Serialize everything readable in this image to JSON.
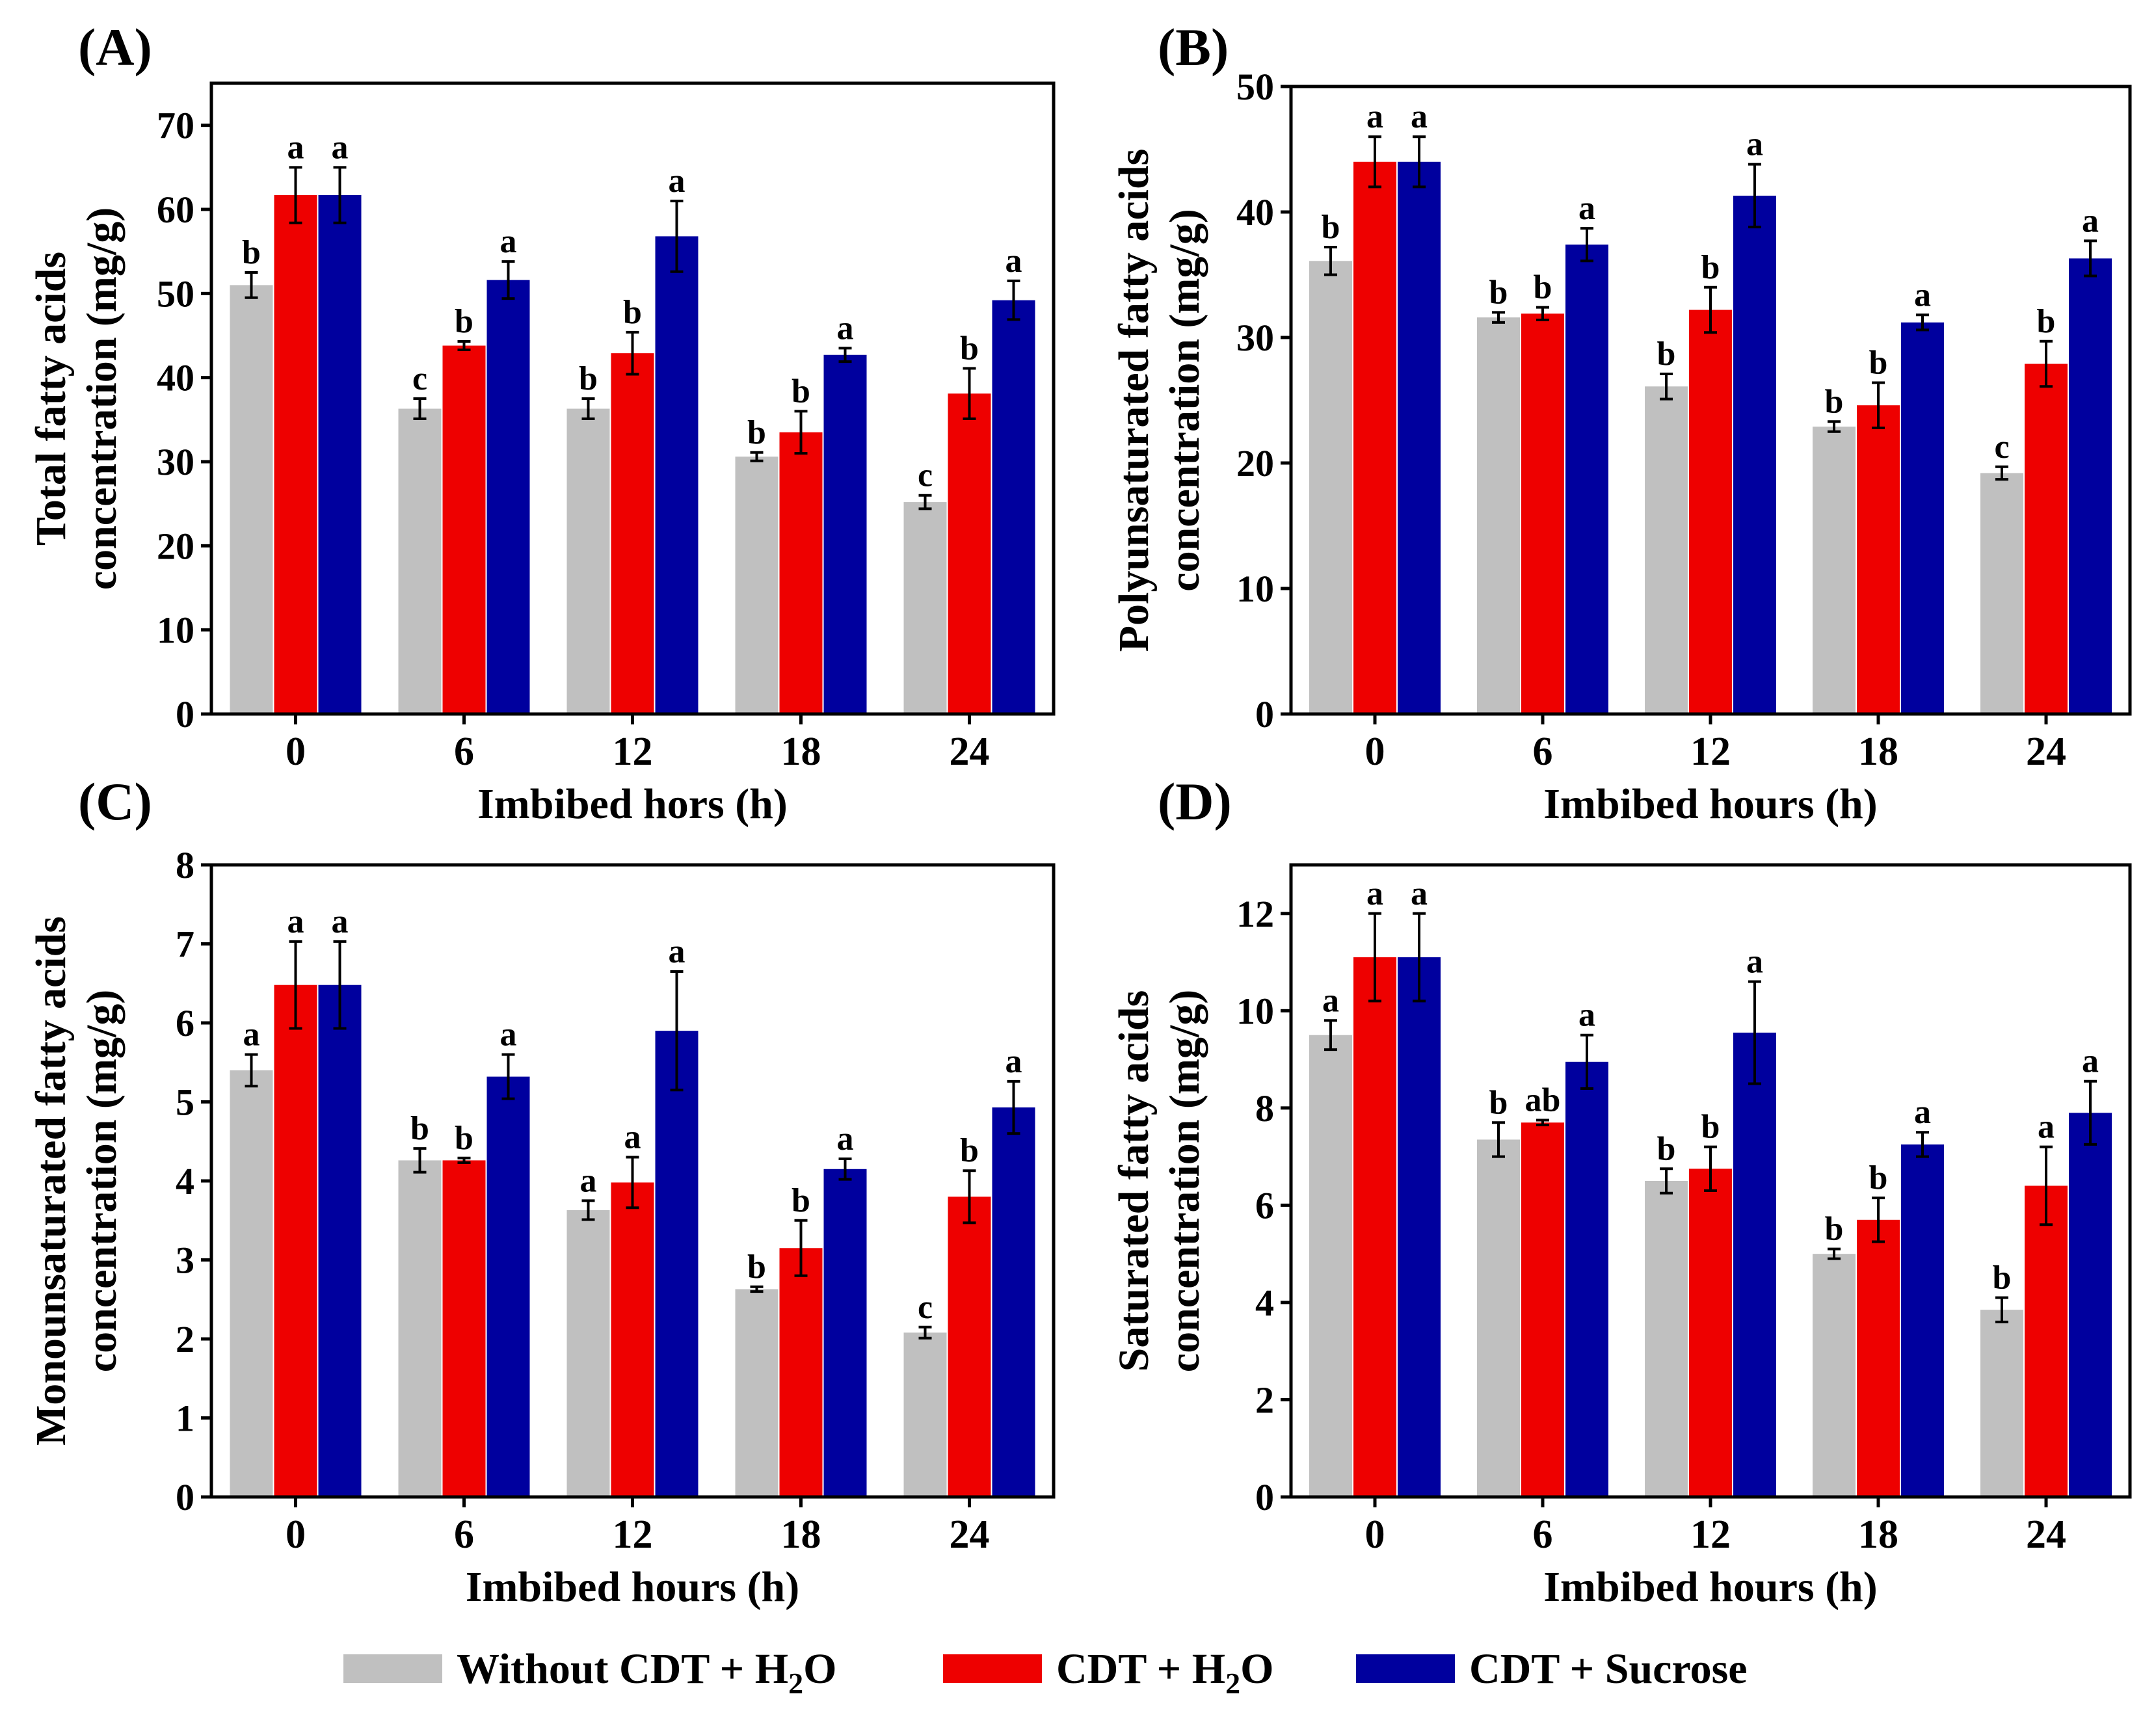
{
  "figure": {
    "legend": [
      {
        "label": "Without CDT + H",
        "sub": "2",
        "tail": "O",
        "color": "#c0c0c0"
      },
      {
        "label": "CDT + H",
        "sub": "2",
        "tail": "O",
        "color": "#ee0000"
      },
      {
        "label": "CDT + Sucrose",
        "sub": "",
        "tail": "",
        "color": "#00009e"
      }
    ]
  },
  "chart_data": [
    {
      "type": "bar",
      "panel_label": "(A)",
      "ylabel": [
        "Total fatty acids",
        "concentration (mg/g)"
      ],
      "xlabel": "Imbibed hors (h)",
      "categories": [
        "0",
        "6",
        "12",
        "18",
        "24"
      ],
      "ylim": [
        0,
        75
      ],
      "yticks": [
        0,
        10,
        20,
        30,
        40,
        50,
        60,
        70
      ],
      "series": [
        {
          "name": "Without CDT + H2O",
          "values": [
            51.0,
            36.3,
            36.3,
            30.6,
            25.2
          ],
          "errors": [
            1.5,
            1.2,
            1.2,
            0.5,
            0.8
          ],
          "letters": [
            "b",
            "c",
            "b",
            "b",
            "c"
          ]
        },
        {
          "name": "CDT + H2O",
          "values": [
            61.7,
            43.8,
            42.9,
            33.5,
            38.1
          ],
          "errors": [
            3.3,
            0.5,
            2.5,
            2.5,
            3.0
          ],
          "letters": [
            "a",
            "b",
            "b",
            "b",
            "b"
          ]
        },
        {
          "name": "CDT + Sucrose",
          "values": [
            61.7,
            51.6,
            56.8,
            42.7,
            49.2
          ],
          "errors": [
            3.3,
            2.2,
            4.2,
            0.8,
            2.3
          ],
          "letters": [
            "a",
            "a",
            "a",
            "a",
            "a"
          ]
        }
      ]
    },
    {
      "type": "bar",
      "panel_label": "(B)",
      "ylabel": [
        "Polyunsaturated fatty acids",
        "concentration (mg/g)"
      ],
      "xlabel": "Imbibed hours (h)",
      "categories": [
        "0",
        "6",
        "12",
        "18",
        "24"
      ],
      "ylim": [
        0,
        50
      ],
      "yticks": [
        0,
        10,
        20,
        30,
        40,
        50
      ],
      "series": [
        {
          "name": "Without CDT + H2O",
          "values": [
            36.1,
            31.6,
            26.1,
            22.9,
            19.2
          ],
          "errors": [
            1.1,
            0.4,
            1.0,
            0.4,
            0.5
          ],
          "letters": [
            "b",
            "b",
            "b",
            "b",
            "c"
          ]
        },
        {
          "name": "CDT + H2O",
          "values": [
            44.0,
            31.9,
            32.2,
            24.6,
            27.9
          ],
          "errors": [
            2.0,
            0.5,
            1.8,
            1.8,
            1.8
          ],
          "letters": [
            "a",
            "b",
            "b",
            "b",
            "b"
          ]
        },
        {
          "name": "CDT + Sucrose",
          "values": [
            44.0,
            37.4,
            41.3,
            31.2,
            36.3
          ],
          "errors": [
            2.0,
            1.3,
            2.5,
            0.6,
            1.4
          ],
          "letters": [
            "a",
            "a",
            "a",
            "a",
            "a"
          ]
        }
      ]
    },
    {
      "type": "bar",
      "panel_label": "(C)",
      "ylabel": [
        "Monounsaturated fatty acids",
        "concentration (mg/g)"
      ],
      "xlabel": "Imbibed hours (h)",
      "categories": [
        "0",
        "6",
        "12",
        "18",
        "24"
      ],
      "ylim": [
        0,
        8
      ],
      "yticks": [
        0,
        1,
        2,
        3,
        4,
        5,
        6,
        7,
        8
      ],
      "series": [
        {
          "name": "Without CDT + H2O",
          "values": [
            5.4,
            4.26,
            3.63,
            2.63,
            2.08
          ],
          "errors": [
            0.2,
            0.15,
            0.12,
            0.03,
            0.07
          ],
          "letters": [
            "a",
            "b",
            "a",
            "b",
            "c"
          ]
        },
        {
          "name": "CDT + H2O",
          "values": [
            6.48,
            4.26,
            3.98,
            3.15,
            3.8
          ],
          "errors": [
            0.55,
            0.03,
            0.32,
            0.35,
            0.33
          ],
          "letters": [
            "a",
            "b",
            "a",
            "b",
            "b"
          ]
        },
        {
          "name": "CDT + Sucrose",
          "values": [
            6.48,
            5.32,
            5.9,
            4.15,
            4.93
          ],
          "errors": [
            0.55,
            0.28,
            0.75,
            0.13,
            0.33
          ],
          "letters": [
            "a",
            "a",
            "a",
            "a",
            "a"
          ]
        }
      ]
    },
    {
      "type": "bar",
      "panel_label": "(D)",
      "ylabel": [
        "Saturated fatty acids",
        "concentration (mg/g)"
      ],
      "xlabel": "Imbibed hours (h)",
      "categories": [
        "0",
        "6",
        "12",
        "18",
        "24"
      ],
      "ylim": [
        0,
        13
      ],
      "yticks": [
        0,
        2,
        4,
        6,
        8,
        10,
        12
      ],
      "series": [
        {
          "name": "Without CDT + H2O",
          "values": [
            9.5,
            7.35,
            6.5,
            5.0,
            3.85
          ],
          "errors": [
            0.3,
            0.35,
            0.25,
            0.1,
            0.25
          ],
          "letters": [
            "a",
            "b",
            "b",
            "b",
            "b"
          ]
        },
        {
          "name": "CDT + H2O",
          "values": [
            11.1,
            7.7,
            6.75,
            5.7,
            6.4
          ],
          "errors": [
            0.9,
            0.05,
            0.45,
            0.45,
            0.8
          ],
          "letters": [
            "a",
            "ab",
            "b",
            "b",
            "a"
          ]
        },
        {
          "name": "CDT + Sucrose",
          "values": [
            11.1,
            8.95,
            9.55,
            7.25,
            7.9
          ],
          "errors": [
            0.9,
            0.55,
            1.05,
            0.25,
            0.65
          ],
          "letters": [
            "a",
            "a",
            "a",
            "a",
            "a"
          ]
        }
      ]
    }
  ]
}
